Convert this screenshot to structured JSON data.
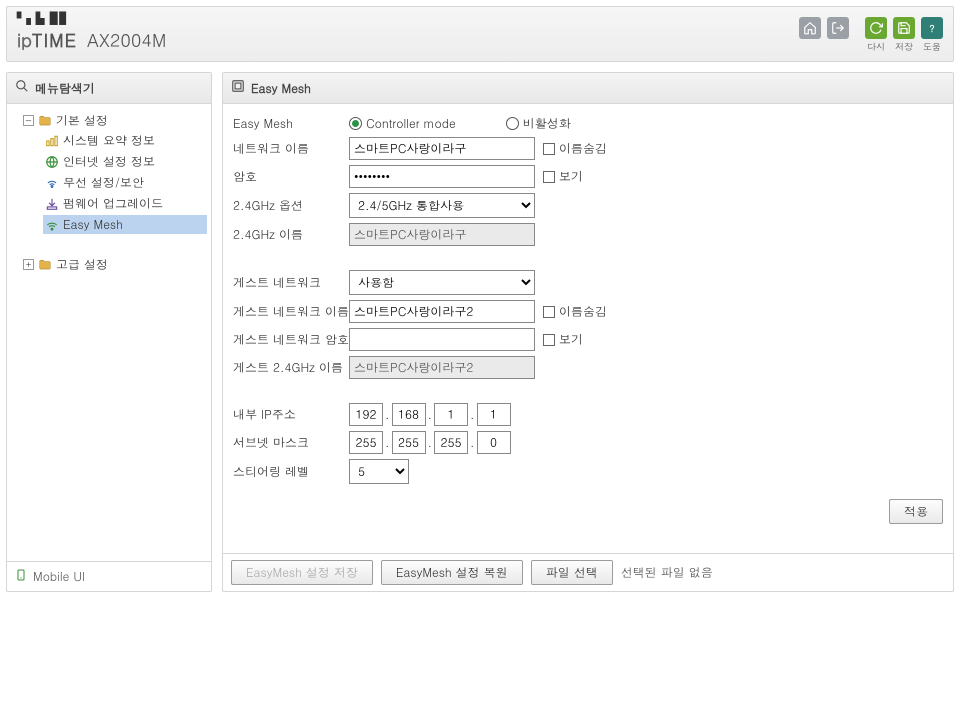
{
  "header": {
    "brand_prefix": "ip",
    "brand_main": "TIME",
    "model": "AX2004M",
    "icons": {
      "home_label": "",
      "refresh_label": "다시",
      "save_label": "저장",
      "help_label": "도움"
    }
  },
  "sidebar": {
    "title": "메뉴탐색기",
    "tree": {
      "basic": {
        "label": "기본 설정",
        "items": [
          "시스템 요약 정보",
          "인터넷 설정 정보",
          "무선 설정/보안",
          "펌웨어 업그레이드",
          "Easy Mesh"
        ],
        "selected_index": 4
      },
      "advanced": {
        "label": "고급 설정"
      }
    },
    "footer": "Mobile UI"
  },
  "content": {
    "title": "Easy Mesh",
    "fields": {
      "easymesh_label": "Easy Mesh",
      "controller_label": "Controller mode",
      "disable_label": "비활성화",
      "net_name_label": "네트워크 이름",
      "net_name_value": "스마트PC사랑이라구",
      "hide_name_label": "이름숨김",
      "pw_label": "암호",
      "pw_value": "••••••••",
      "show_pw_label": "보기",
      "opt24_label": "2.4GHz 옵션",
      "opt24_value": "2.4/5GHz 통합사용",
      "name24_label": "2.4GHz 이름",
      "name24_value": "스마트PC사랑이라구",
      "guest_label": "게스트 네트워크",
      "guest_value": "사용함",
      "guest_name_label": "게스트 네트워크 이름",
      "guest_name_value": "스마트PC사랑이라구2",
      "guest_hide_label": "이름숨김",
      "guest_pw_label": "게스트 네트워크 암호",
      "guest_pw_value": "",
      "guest_show_label": "보기",
      "guest_24_label": "게스트 2.4GHz 이름",
      "guest_24_value": "스마트PC사랑이라구2",
      "ip_label": "내부 IP주소",
      "ip": [
        "192",
        "168",
        "1",
        "1"
      ],
      "mask_label": "서브넷 마스크",
      "mask": [
        "255",
        "255",
        "255",
        "0"
      ],
      "steer_label": "스티어링 레벨",
      "steer_value": "5",
      "apply_label": "적용"
    },
    "footer": {
      "save_btn": "EasyMesh 설정 저장",
      "restore_btn": "EasyMesh 설정 복원",
      "file_btn": "파일 선택",
      "file_status": "선택된 파일 없음"
    }
  }
}
